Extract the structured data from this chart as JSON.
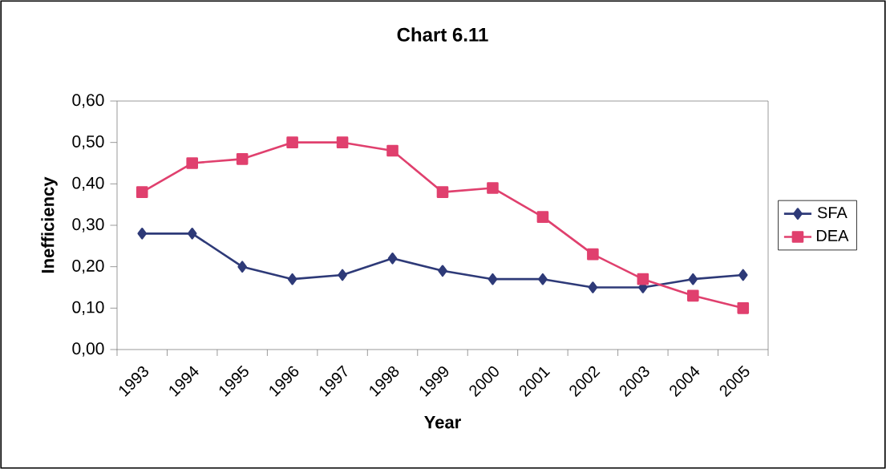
{
  "chart_data": {
    "type": "line",
    "title": "Chart 6.11",
    "xlabel": "Year",
    "ylabel": "Inefficiency",
    "categories": [
      "1993",
      "1994",
      "1995",
      "1996",
      "1997",
      "1998",
      "1999",
      "2000",
      "2001",
      "2002",
      "2003",
      "2004",
      "2005"
    ],
    "series": [
      {
        "name": "SFA",
        "color": "#2e3a78",
        "marker": "diamond",
        "values": [
          0.28,
          0.28,
          0.2,
          0.17,
          0.18,
          0.22,
          0.19,
          0.17,
          0.17,
          0.15,
          0.15,
          0.17,
          0.18
        ]
      },
      {
        "name": "DEA",
        "color": "#e0406e",
        "marker": "square",
        "values": [
          0.38,
          0.45,
          0.46,
          0.5,
          0.5,
          0.48,
          0.38,
          0.39,
          0.32,
          0.23,
          0.17,
          0.13,
          0.1
        ]
      }
    ],
    "ylim": [
      0,
      0.6
    ],
    "yticks": [
      {
        "value": 0,
        "label": "0,00"
      },
      {
        "value": 0.1,
        "label": "0,10"
      },
      {
        "value": 0.2,
        "label": "0,20"
      },
      {
        "value": 0.3,
        "label": "0,30"
      },
      {
        "value": 0.4,
        "label": "0,40"
      },
      {
        "value": 0.5,
        "label": "0,50"
      },
      {
        "value": 0.6,
        "label": "0,60"
      }
    ],
    "legend": "right",
    "line_style": "solid"
  }
}
